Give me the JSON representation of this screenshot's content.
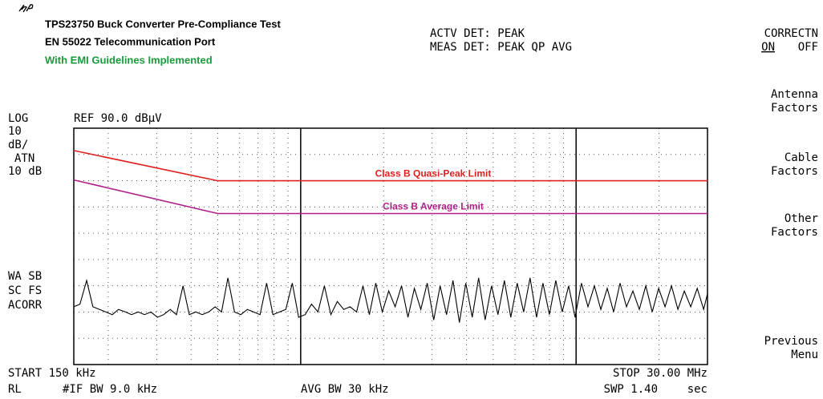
{
  "header": {
    "title": "TPS23750 Buck Converter Pre-Compliance Test",
    "subtitle": "EN 55022 Telecommunication Port",
    "note": "With EMI Guidelines Implemented"
  },
  "detector": {
    "active": "ACTV DET: PEAK",
    "measure": "MEAS DET: PEAK QP AVG"
  },
  "softkeys": {
    "title": "CORRECTN",
    "on": "ON",
    "off": "OFF",
    "keys": [
      [
        "Antenna",
        "Factors"
      ],
      [
        "Cable",
        "Factors"
      ],
      [
        "Other",
        "Factors"
      ],
      [
        "Previous",
        "Menu"
      ]
    ]
  },
  "status_left": {
    "scale": "LOG",
    "ref": "REF 90.0 dBµV",
    "div": "10",
    "div_unit": "dB/",
    "atn": "ATN",
    "atn_value": "10 dB",
    "flags": [
      "WA SB",
      "SC FS",
      "ACORR"
    ]
  },
  "status_bottom": {
    "start": "START 150 kHz",
    "stop": "STOP 30.00 MHz",
    "rl": "RL",
    "if_bw": "#IF BW 9.0 kHz",
    "avg_bw": "AVG BW 30 kHz",
    "sweep": "SWP 1.40",
    "sweep_unit": "sec"
  },
  "chart_data": {
    "type": "line",
    "log_x": true,
    "grid": true,
    "xlim": [
      150,
      30000
    ],
    "ylim": [
      0,
      90
    ],
    "xticks": [
      200,
      300,
      400,
      500,
      600,
      700,
      800,
      900,
      1000,
      2000,
      3000,
      4000,
      5000,
      6000,
      7000,
      8000,
      9000,
      10000,
      20000
    ],
    "yticks": [
      10,
      20,
      30,
      40,
      50,
      60,
      70,
      80
    ],
    "series": [
      {
        "name": "Class B Quasi-Peak Limit",
        "color": "#e02020",
        "x": [
          150,
          500,
          30000
        ],
        "values": [
          81.5,
          70,
          70
        ]
      },
      {
        "name": "Class B Average Limit",
        "color": "#b0208a",
        "x": [
          150,
          500,
          30000
        ],
        "values": [
          70.3,
          57.5,
          57.5
        ]
      },
      {
        "color": "#000000",
        "x": [
          150,
          158,
          167,
          176,
          186,
          196,
          207,
          218,
          231,
          243,
          257,
          271,
          286,
          302,
          318,
          336,
          354,
          374,
          394,
          416,
          439,
          463,
          489,
          516,
          544,
          575,
          606,
          640,
          675,
          712,
          752,
          793,
          837,
          883,
          932,
          983,
          1038,
          1095,
          1155,
          1219,
          1287,
          1358,
          1433,
          1512,
          1595,
          1683,
          1776,
          1874,
          1978,
          2087,
          2202,
          2324,
          2452,
          2587,
          2730,
          2881,
          3040,
          3208,
          3385,
          3572,
          3769,
          3977,
          4197,
          4428,
          4673,
          4931,
          5203,
          5490,
          5793,
          6113,
          6451,
          6807,
          7183,
          7579,
          7998,
          8439,
          8905,
          9397,
          9916,
          10463,
          11041,
          11650,
          12293,
          12972,
          13688,
          14444,
          15241,
          16083,
          16970,
          17908,
          18896,
          19939,
          21040,
          22202,
          23427,
          24721,
          26085,
          27526,
          29045,
          30000
        ],
        "values": [
          22,
          23,
          32,
          22,
          21,
          20,
          19,
          21,
          20,
          19,
          20,
          19,
          20,
          18,
          19,
          21,
          19,
          30,
          19,
          20,
          19,
          20,
          22,
          20,
          33,
          20,
          19,
          21,
          20,
          19,
          31,
          19,
          20,
          21,
          31,
          18,
          19,
          23,
          20,
          30,
          19,
          24,
          21,
          22,
          20,
          30,
          19,
          31,
          20,
          28,
          22,
          30,
          18,
          29,
          21,
          31,
          17,
          30,
          19,
          32,
          16,
          31,
          18,
          33,
          17,
          30,
          19,
          32,
          18,
          31,
          20,
          33,
          18,
          31,
          19,
          32,
          20,
          30,
          18,
          31,
          22,
          30,
          21,
          29,
          20,
          31,
          22,
          28,
          21,
          30,
          20,
          29,
          22,
          30,
          21,
          28,
          22,
          29,
          21,
          27
        ]
      }
    ]
  }
}
